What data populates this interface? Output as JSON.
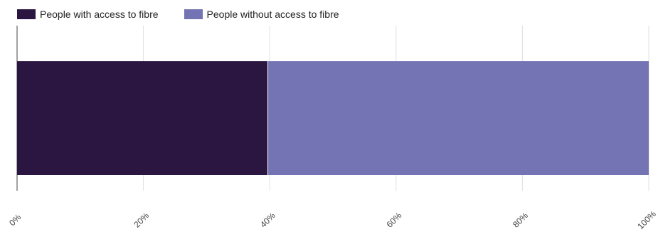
{
  "chart_data": {
    "type": "bar",
    "orientation": "horizontal",
    "stacked": true,
    "categories": [
      ""
    ],
    "series": [
      {
        "name": "People with access to fibre",
        "values": [
          39.7
        ],
        "color": "#2b1541"
      },
      {
        "name": "People without access to fibre",
        "values": [
          60.3
        ],
        "color": "#7473b3"
      }
    ],
    "title": "",
    "xlabel": "",
    "ylabel": "",
    "xlim": [
      0,
      100
    ],
    "x_ticks": [
      "0%",
      "20%",
      "40%",
      "60%",
      "80%",
      "100%"
    ],
    "grid": true,
    "legend_position": "top-left"
  }
}
